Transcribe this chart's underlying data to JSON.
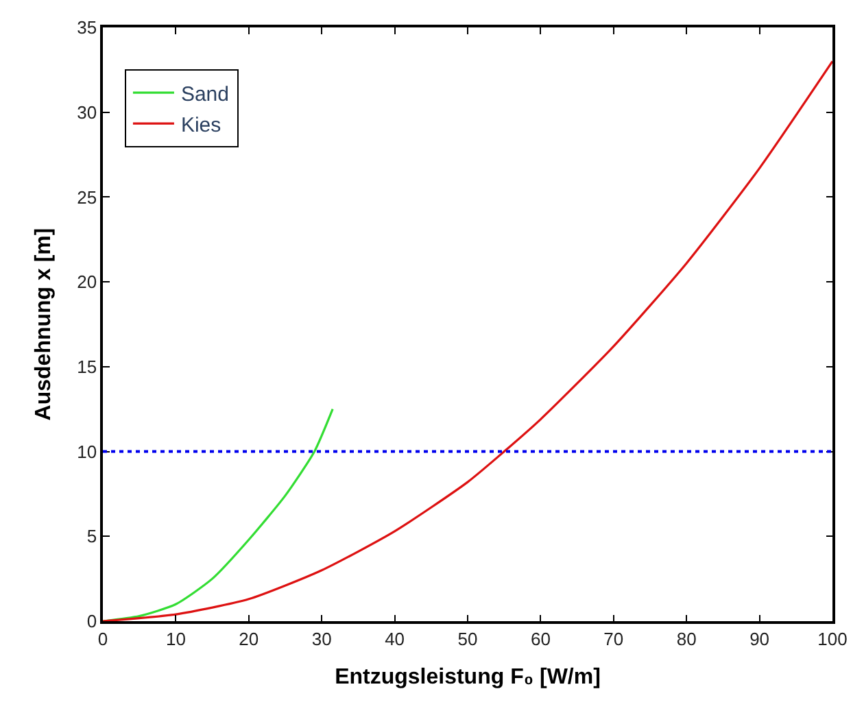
{
  "chart_data": {
    "type": "line",
    "xlabel": "Entzugsleistung F₀ [W/m]",
    "ylabel": "Ausdehnung x [m]",
    "xlim": [
      0,
      100
    ],
    "xticks": [
      0,
      10,
      20,
      30,
      40,
      50,
      60,
      70,
      80,
      90,
      100
    ],
    "ylim": [
      0,
      35
    ],
    "yticks": [
      0,
      5,
      10,
      15,
      20,
      25,
      30,
      35
    ],
    "legend": "top left",
    "line_style": "solid",
    "marker": "none",
    "series": [
      {
        "name": "Sand",
        "color": "#33dd33",
        "x": [
          0,
          5,
          10,
          15,
          20,
          25,
          29,
          31.5
        ],
        "values": [
          0,
          0.3,
          1.0,
          2.5,
          4.8,
          7.4,
          10,
          12.5
        ]
      },
      {
        "name": "Kies",
        "color": "#dd1111",
        "x": [
          0,
          10,
          20,
          30,
          40,
          50,
          55,
          60,
          70,
          80,
          90,
          100
        ],
        "values": [
          0,
          0.4,
          1.3,
          3.0,
          5.3,
          8.2,
          10,
          11.9,
          16.2,
          21.1,
          26.7,
          33
        ]
      }
    ],
    "ref_lines": [
      {
        "axis": "y",
        "value": 10,
        "color": "#0000ee",
        "line_style": "dotted"
      }
    ]
  }
}
